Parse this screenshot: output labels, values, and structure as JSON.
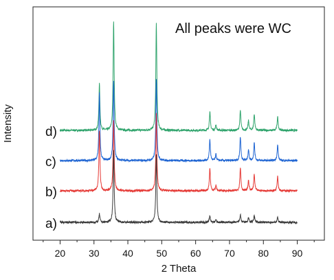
{
  "chart_data": {
    "type": "line",
    "title": "",
    "annotation": "All peaks were WC",
    "xlabel": "2 Theta",
    "ylabel": "Intensity",
    "xlim": [
      12,
      98
    ],
    "xticks": [
      "20",
      "30",
      "40",
      "50",
      "60",
      "70",
      "80",
      "90"
    ],
    "grid": false,
    "legend": "inline labels at left",
    "series_order_bottom_to_top": [
      "a)",
      "b)",
      "c)",
      "d)"
    ],
    "series": [
      {
        "label": "a)",
        "color": "#3a3a3a",
        "baseline": 0,
        "peaks": [
          [
            31.6,
            12
          ],
          [
            35.8,
            105
          ],
          [
            48.4,
            100
          ],
          [
            64.2,
            10
          ],
          [
            66.0,
            4
          ],
          [
            73.2,
            11
          ],
          [
            75.6,
            7
          ],
          [
            77.3,
            10
          ],
          [
            84.2,
            7
          ]
        ]
      },
      {
        "label": "b)",
        "color": "#e53935",
        "baseline": 46,
        "peaks": [
          [
            31.6,
            88
          ],
          [
            35.8,
            104
          ],
          [
            48.4,
            112
          ],
          [
            64.2,
            33
          ],
          [
            66.0,
            8
          ],
          [
            73.2,
            34
          ],
          [
            75.6,
            15
          ],
          [
            77.3,
            24
          ],
          [
            84.2,
            22
          ]
        ]
      },
      {
        "label": "c)",
        "color": "#1e64d2",
        "baseline": 90,
        "peaks": [
          [
            31.6,
            98
          ],
          [
            35.8,
            116
          ],
          [
            48.4,
            120
          ],
          [
            64.2,
            31
          ],
          [
            66.0,
            9
          ],
          [
            73.2,
            35
          ],
          [
            75.6,
            16
          ],
          [
            77.3,
            26
          ],
          [
            84.2,
            23
          ]
        ]
      },
      {
        "label": "d)",
        "color": "#2ea36b",
        "baseline": 134,
        "peaks": [
          [
            31.6,
            68
          ],
          [
            35.8,
            160
          ],
          [
            48.4,
            156
          ],
          [
            64.2,
            27
          ],
          [
            66.0,
            8
          ],
          [
            73.2,
            29
          ],
          [
            75.6,
            14
          ],
          [
            77.3,
            24
          ],
          [
            84.2,
            20
          ]
        ]
      }
    ]
  }
}
